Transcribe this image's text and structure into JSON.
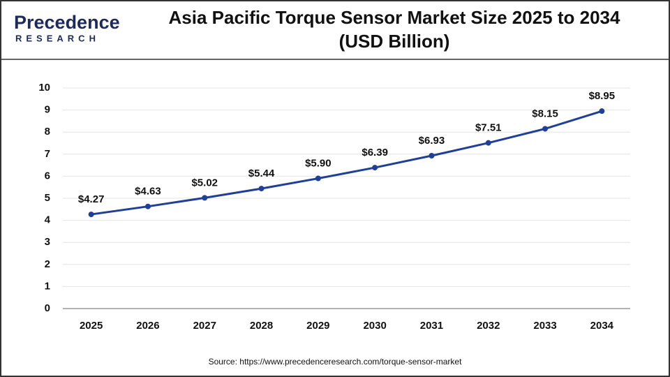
{
  "logo": {
    "name": "Precedence",
    "sub": "RESEARCH"
  },
  "chart_data": {
    "type": "line",
    "title": "Asia Pacific Torque Sensor Market Size 2025 to 2034 (USD Billion)",
    "categories": [
      "2025",
      "2026",
      "2027",
      "2028",
      "2029",
      "2030",
      "2031",
      "2032",
      "2033",
      "2034"
    ],
    "series": [
      {
        "name": "Asia Pacific",
        "color": "#1f3f99",
        "values": [
          4.27,
          4.63,
          5.02,
          5.44,
          5.9,
          6.39,
          6.93,
          7.51,
          8.15,
          8.95
        ],
        "value_labels": [
          "$4.27",
          "$4.63",
          "$5.02",
          "$5.44",
          "$5.90",
          "$6.39",
          "$6.93",
          "$7.51",
          "$8.15",
          "$8.95"
        ]
      }
    ],
    "ylim": [
      0,
      10
    ],
    "yticks": [
      0,
      1,
      2,
      3,
      4,
      5,
      6,
      7,
      8,
      9,
      10
    ],
    "grid": true,
    "source": "Source: https://www.precedenceresearch.com/torque-sensor-market"
  }
}
